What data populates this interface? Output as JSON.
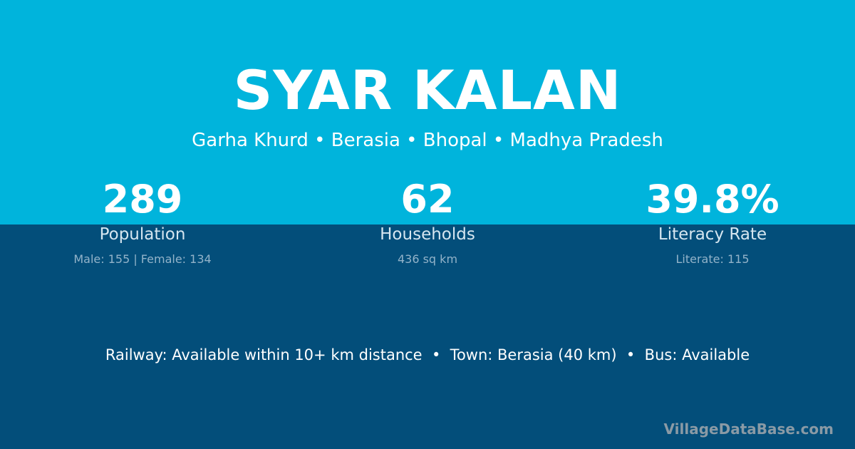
{
  "header": {
    "title": "SYAR KALAN",
    "breadcrumb": "Garha Khurd • Berasia • Bhopal • Madhya Pradesh"
  },
  "stats": [
    {
      "value": "289",
      "label": "Population",
      "detail": "Male: 155 | Female: 134"
    },
    {
      "value": "62",
      "label": "Households",
      "detail": "436 sq km"
    },
    {
      "value": "39.8%",
      "label": "Literacy Rate",
      "detail": "Literate: 115"
    }
  ],
  "facts": "Railway: Available within 10+ km distance  •  Town: Berasia (40 km)  •  Bus: Available",
  "brand": "VillageDataBase.com",
  "colors": {
    "top_band": "#00b4dc",
    "bottom_band": "#034e7a"
  }
}
